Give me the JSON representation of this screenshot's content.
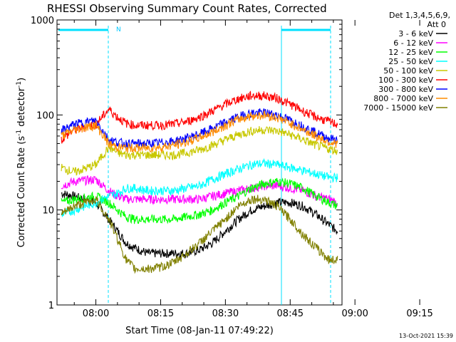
{
  "chart_data": {
    "type": "line",
    "title": "RHESSI Observing Summary Count Rates, Corrected",
    "xlabel": "Start Time (08-Jan-11 07:49:22)",
    "ylabel_main": "Corrected Count Rate (s",
    "ylabel_sup1": "-1",
    "ylabel_mid": " detector",
    "ylabel_sup2": "-1",
    "ylabel_end": ")",
    "yscale": "log",
    "ylim": [
      1,
      1000
    ],
    "xlim_minutes": [
      -9,
      57
    ],
    "y_ticks": [
      "1",
      "10",
      "100",
      "1000"
    ],
    "x_ticks": [
      {
        "label": "08:00",
        "minutes": 0
      },
      {
        "label": "08:15",
        "minutes": 15
      },
      {
        "label": "08:30",
        "minutes": 30
      },
      {
        "label": "08:45",
        "minutes": 45
      },
      {
        "label": "09:00",
        "minutes": 60
      },
      {
        "label": "09:15",
        "minutes": 75
      }
    ],
    "legend_header": [
      "Det 1,3,4,5,6,9,",
      "Att 0"
    ],
    "legend_placement": "right",
    "night_bar_label": "N",
    "series": [
      {
        "name": "3 - 6 keV",
        "color": "#000000",
        "x": [
          -8,
          -5,
          0,
          3,
          5,
          7,
          9,
          12,
          15,
          18,
          21,
          24,
          27,
          30,
          33,
          36,
          39,
          42,
          45,
          48,
          51,
          54,
          56
        ],
        "y": [
          15,
          14,
          12,
          8,
          6,
          4.5,
          4,
          3.5,
          3.5,
          3.5,
          3.5,
          3.8,
          4.5,
          6,
          8,
          10,
          11,
          12,
          12,
          11,
          9,
          7,
          6
        ]
      },
      {
        "name": "6 - 12 keV",
        "color": "#ff00ff",
        "x": [
          -8,
          -5,
          0,
          3,
          5,
          7,
          9,
          12,
          15,
          18,
          21,
          24,
          27,
          30,
          33,
          36,
          39,
          42,
          45,
          48,
          51,
          54,
          56
        ],
        "y": [
          18,
          20,
          21,
          16,
          14,
          13,
          13,
          13,
          13,
          13,
          13,
          13,
          14,
          15,
          16,
          17,
          18,
          18,
          17,
          16,
          14,
          13,
          12
        ]
      },
      {
        "name": "12 - 25 keV",
        "color": "#00ff00",
        "x": [
          -8,
          -5,
          0,
          3,
          5,
          7,
          9,
          12,
          15,
          18,
          21,
          24,
          27,
          30,
          33,
          36,
          39,
          42,
          45,
          48,
          51,
          54,
          56
        ],
        "y": [
          12,
          13,
          14,
          12,
          10,
          8.5,
          8,
          8,
          8,
          8,
          8.5,
          9,
          10,
          12,
          14,
          17,
          19,
          20,
          19,
          17,
          14,
          12,
          11
        ]
      },
      {
        "name": "25 - 50 keV",
        "color": "#00ffff",
        "x": [
          -8,
          -5,
          0,
          3,
          5,
          7,
          9,
          12,
          15,
          18,
          21,
          24,
          27,
          30,
          33,
          36,
          39,
          42,
          45,
          48,
          51,
          54,
          56
        ],
        "y": [
          9,
          10,
          12,
          14,
          15,
          17,
          17,
          16,
          16,
          16,
          17,
          18,
          21,
          24,
          27,
          30,
          31,
          30,
          28,
          26,
          24,
          22,
          22
        ]
      },
      {
        "name": "50 - 100 keV",
        "color": "#c8c800",
        "x": [
          -8,
          -5,
          0,
          3,
          5,
          7,
          9,
          12,
          15,
          18,
          21,
          24,
          27,
          30,
          33,
          36,
          39,
          42,
          45,
          48,
          51,
          54,
          56
        ],
        "y": [
          28,
          25,
          30,
          46,
          40,
          38,
          38,
          38,
          38,
          38,
          40,
          43,
          48,
          55,
          62,
          68,
          70,
          68,
          62,
          55,
          48,
          44,
          42
        ]
      },
      {
        "name": "100 - 300 keV",
        "color": "#ff0000",
        "x": [
          -8,
          -5,
          0,
          3,
          5,
          7,
          9,
          12,
          15,
          18,
          21,
          24,
          27,
          30,
          33,
          36,
          39,
          42,
          45,
          48,
          51,
          54,
          56
        ],
        "y": [
          55,
          70,
          80,
          115,
          95,
          82,
          78,
          78,
          78,
          80,
          85,
          95,
          110,
          130,
          148,
          160,
          160,
          150,
          130,
          110,
          95,
          85,
          80
        ]
      },
      {
        "name": "300 - 800 keV",
        "color": "#0000ff",
        "x": [
          -8,
          -5,
          0,
          3,
          5,
          7,
          9,
          12,
          15,
          18,
          21,
          24,
          27,
          30,
          33,
          36,
          39,
          42,
          45,
          48,
          51,
          54,
          56
        ],
        "y": [
          68,
          80,
          88,
          55,
          52,
          50,
          50,
          50,
          51,
          53,
          57,
          63,
          72,
          84,
          96,
          105,
          106,
          100,
          88,
          76,
          65,
          57,
          55
        ]
      },
      {
        "name": "800 - 7000 keV",
        "color": "#ff8c00",
        "x": [
          -8,
          -5,
          0,
          3,
          5,
          7,
          9,
          12,
          15,
          18,
          21,
          24,
          27,
          30,
          33,
          36,
          39,
          42,
          45,
          48,
          51,
          54,
          56
        ],
        "y": [
          60,
          70,
          78,
          50,
          46,
          45,
          45,
          45,
          46,
          48,
          52,
          58,
          66,
          78,
          90,
          98,
          100,
          94,
          82,
          70,
          60,
          52,
          50
        ]
      },
      {
        "name": "7000 - 15000 keV",
        "color": "#808000",
        "x": [
          -8,
          -5,
          0,
          3,
          5,
          7,
          9,
          12,
          15,
          18,
          21,
          24,
          27,
          30,
          33,
          36,
          39,
          42,
          45,
          48,
          51,
          54,
          56
        ],
        "y": [
          9,
          11,
          13,
          8,
          5,
          3,
          2.4,
          2.4,
          2.5,
          2.8,
          3.5,
          4.5,
          6,
          8,
          11,
          13,
          13,
          11,
          8,
          5.5,
          4,
          3,
          3
        ]
      }
    ]
  },
  "footer": {
    "timestamp": "13-Oct-2021 15:39"
  }
}
